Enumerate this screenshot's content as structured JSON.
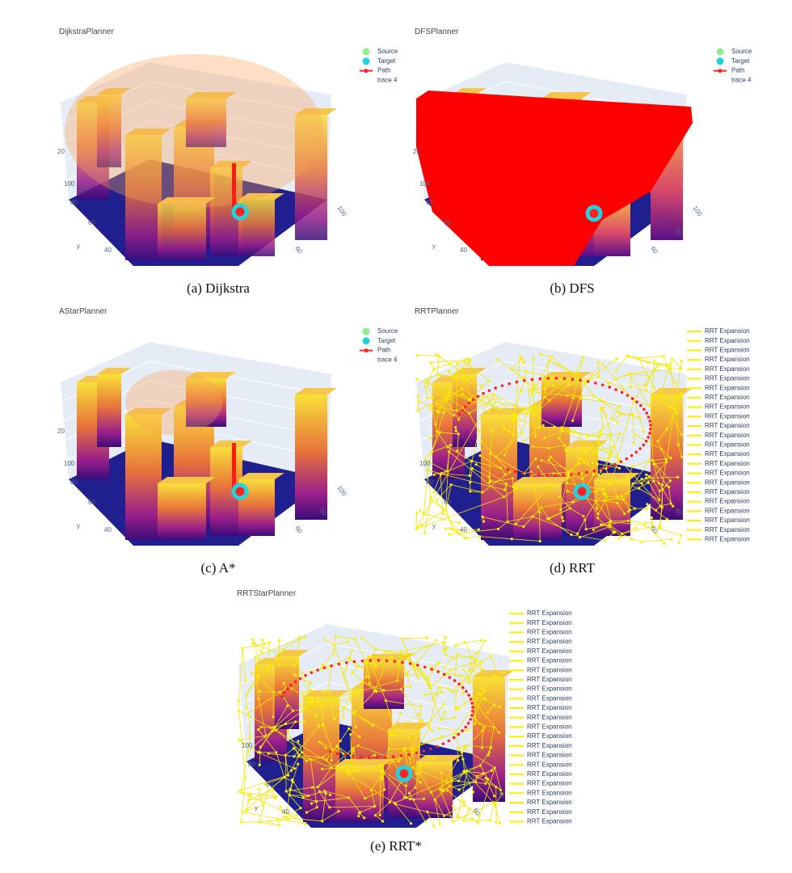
{
  "panels": [
    {
      "title": "DijkstraPlanner",
      "caption": "(a) Dijkstra",
      "legend": [
        "Source",
        "Target",
        "Path",
        "trace 4"
      ],
      "y_ticks": [
        "20",
        "100",
        "80",
        "60",
        "40"
      ],
      "y_label": "y",
      "x_ticks": [
        "100",
        "80",
        "60"
      ]
    },
    {
      "title": "DFSPlanner",
      "caption": "(b) DFS",
      "legend": [
        "Source",
        "Target",
        "Path",
        "trace 4"
      ],
      "y_ticks": [
        "20",
        "100",
        "80",
        "60",
        "40"
      ],
      "y_label": "y",
      "x_ticks": [
        "100",
        "80",
        "60"
      ]
    },
    {
      "title": "AStarPlanner",
      "caption": "(c) A*",
      "legend": [
        "Source",
        "Target",
        "Path",
        "trace 4"
      ],
      "y_ticks": [
        "20",
        "100",
        "80",
        "60",
        "40"
      ],
      "y_label": "y",
      "x_ticks": [
        "100",
        "80",
        "60"
      ]
    },
    {
      "title": "RRTPlanner",
      "caption": "(d) RRT",
      "legend": [
        "RRT Expansion",
        "RRT Expansion",
        "RRT Expansion",
        "RRT Expansion",
        "RRT Expansion",
        "RRT Expansion",
        "RRT Expansion",
        "RRT Expansion",
        "RRT Expansion",
        "RRT Expansion",
        "RRT Expansion",
        "RRT Expansion",
        "RRT Expansion",
        "RRT Expansion",
        "RRT Expansion",
        "RRT Expansion",
        "RRT Expansion",
        "RRT Expansion",
        "RRT Expansion",
        "RRT Expansion",
        "RRT Expansion",
        "RRT Expansion",
        "RRT Expansion"
      ],
      "y_ticks": [
        "100",
        "80",
        "60",
        "40"
      ],
      "y_label": "y",
      "x_ticks": [
        "80",
        "60"
      ]
    },
    {
      "title": "RRTStarPlanner",
      "caption": "(e) RRT*",
      "legend": [
        "RRT Expansion",
        "RRT Expansion",
        "RRT Expansion",
        "RRT Expansion",
        "RRT Expansion",
        "RRT Expansion",
        "RRT Expansion",
        "RRT Expansion",
        "RRT Expansion",
        "RRT Expansion",
        "RRT Expansion",
        "RRT Expansion",
        "RRT Expansion",
        "RRT Expansion",
        "RRT Expansion",
        "RRT Expansion",
        "RRT Expansion",
        "RRT Expansion",
        "RRT Expansion",
        "RRT Expansion",
        "RRT Expansion",
        "RRT Expansion",
        "RRT Expansion"
      ],
      "y_ticks": [
        "100",
        "80",
        "60",
        "40"
      ],
      "y_label": "y",
      "x_ticks": [
        "80",
        "60"
      ]
    }
  ]
}
